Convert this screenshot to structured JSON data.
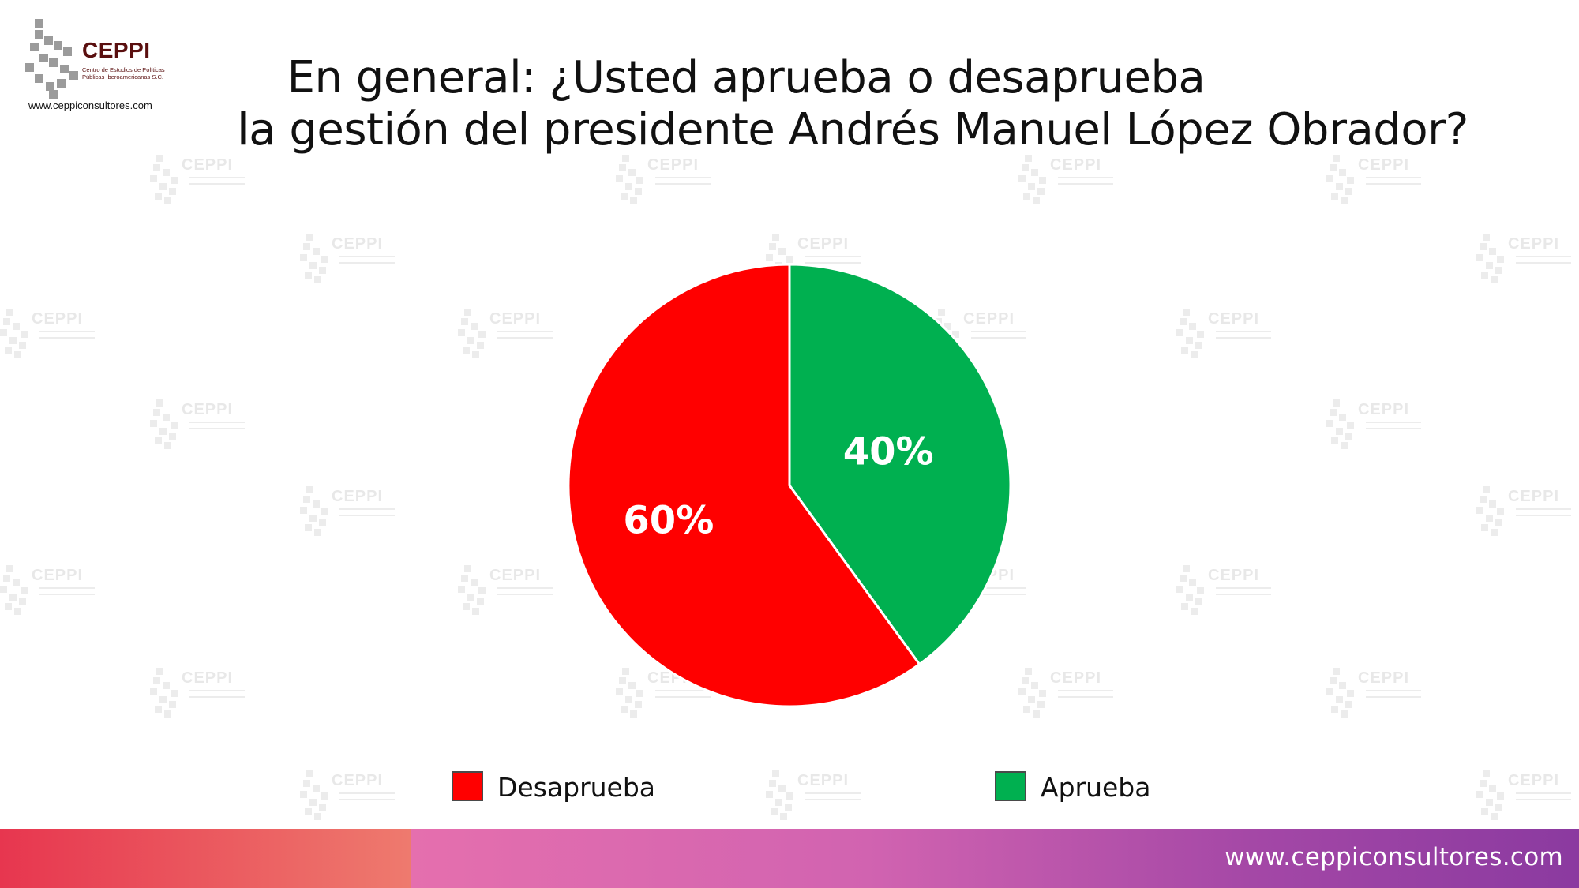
{
  "logo": {
    "name": "CEPPI",
    "subtitle": "Centro de Estudios de Políticas Públicas Iberoamericanas S.C.",
    "url": "www.ceppiconsultores.com"
  },
  "watermark_text": "CEPPI",
  "title_line1": "En general: ¿Usted aprueba o desaprueba",
  "title_line2": "la gestión del presidente Andrés Manuel López Obrador?",
  "chart_data": {
    "type": "pie",
    "title": "En general: ¿Usted aprueba o desaprueba la gestión del presidente Andrés Manuel López Obrador?",
    "slices": [
      {
        "label": "Aprueba",
        "value": 40,
        "display": "40%",
        "color": "#00b050"
      },
      {
        "label": "Desaprueba",
        "value": 60,
        "display": "60%",
        "color": "#ff0000"
      }
    ],
    "start": "12 o'clock, clockwise",
    "legend_position": "bottom"
  },
  "legend": [
    {
      "label": "Desaprueba",
      "color": "#ff0000"
    },
    {
      "label": "Aprueba",
      "color": "#00b050"
    }
  ],
  "footer": {
    "url": "www.ceppiconsultores.com"
  }
}
